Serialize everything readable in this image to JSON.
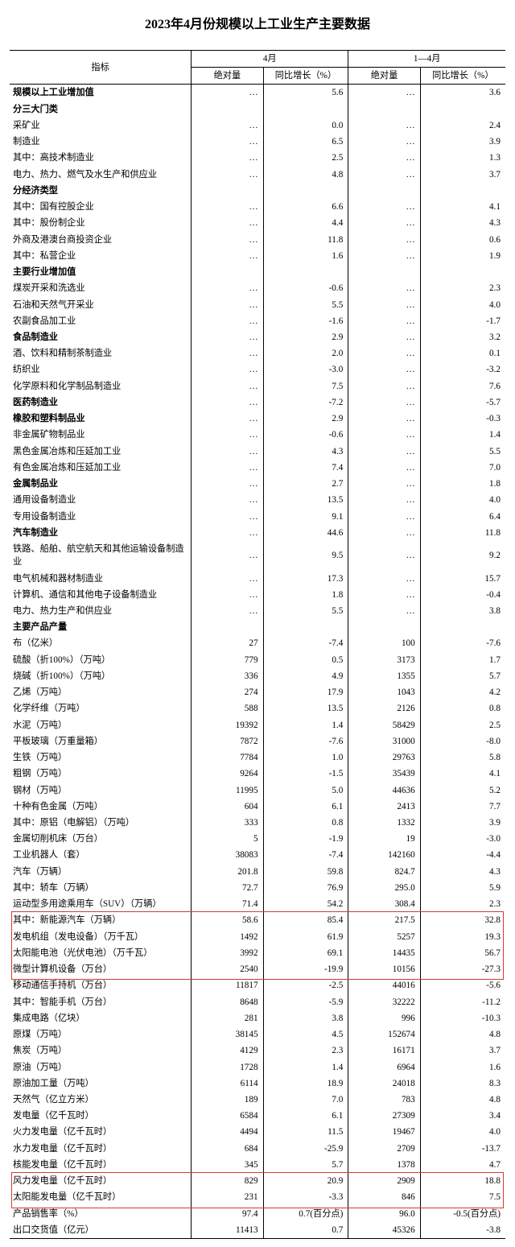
{
  "title": "2023年4月份规模以上工业生产主要数据",
  "header": {
    "indicator": "指标",
    "group_april": "4月",
    "group_jan_apr": "1—4月",
    "abs": "绝对量",
    "yoy": "同比增长（%）"
  },
  "highlight_color": "#d63a2e",
  "rows": [
    {
      "label": "规模以上工业增加值",
      "indent": 0,
      "bold": true,
      "a": "…",
      "b": "5.6",
      "c": "…",
      "d": "3.6"
    },
    {
      "label": "分三大门类",
      "indent": 0,
      "bold": true,
      "a": "",
      "b": "",
      "c": "",
      "d": ""
    },
    {
      "label": "采矿业",
      "indent": 1,
      "a": "…",
      "b": "0.0",
      "c": "…",
      "d": "2.4"
    },
    {
      "label": "制造业",
      "indent": 1,
      "a": "…",
      "b": "6.5",
      "c": "…",
      "d": "3.9"
    },
    {
      "label": "其中：高技术制造业",
      "indent": 2,
      "a": "…",
      "b": "2.5",
      "c": "…",
      "d": "1.3"
    },
    {
      "label": "电力、热力、燃气及水生产和供应业",
      "indent": 1,
      "a": "…",
      "b": "4.8",
      "c": "…",
      "d": "3.7"
    },
    {
      "label": "分经济类型",
      "indent": 0,
      "bold": true,
      "a": "",
      "b": "",
      "c": "",
      "d": ""
    },
    {
      "label": "其中：国有控股企业",
      "indent": 1,
      "a": "…",
      "b": "6.6",
      "c": "…",
      "d": "4.1"
    },
    {
      "label": "其中：股份制企业",
      "indent": 1,
      "a": "…",
      "b": "4.4",
      "c": "…",
      "d": "4.3"
    },
    {
      "label": "外商及港澳台商投资企业",
      "indent": 2,
      "a": "…",
      "b": "11.8",
      "c": "…",
      "d": "0.6"
    },
    {
      "label": "其中：私营企业",
      "indent": 1,
      "a": "…",
      "b": "1.6",
      "c": "…",
      "d": "1.9"
    },
    {
      "label": "主要行业增加值",
      "indent": 0,
      "bold": true,
      "a": "",
      "b": "",
      "c": "",
      "d": ""
    },
    {
      "label": "煤炭开采和洗选业",
      "indent": 1,
      "a": "…",
      "b": "-0.6",
      "c": "…",
      "d": "2.3"
    },
    {
      "label": "石油和天然气开采业",
      "indent": 1,
      "a": "…",
      "b": "5.5",
      "c": "…",
      "d": "4.0"
    },
    {
      "label": "农副食品加工业",
      "indent": 1,
      "a": "…",
      "b": "-1.6",
      "c": "…",
      "d": "-1.7"
    },
    {
      "label": "食品制造业",
      "indent": 1,
      "bold": true,
      "a": "…",
      "b": "2.9",
      "c": "…",
      "d": "3.2"
    },
    {
      "label": "酒、饮料和精制茶制造业",
      "indent": 1,
      "a": "…",
      "b": "2.0",
      "c": "…",
      "d": "0.1"
    },
    {
      "label": "纺织业",
      "indent": 1,
      "a": "…",
      "b": "-3.0",
      "c": "…",
      "d": "-3.2"
    },
    {
      "label": "化学原料和化学制品制造业",
      "indent": 1,
      "a": "…",
      "b": "7.5",
      "c": "…",
      "d": "7.6"
    },
    {
      "label": "医药制造业",
      "indent": 1,
      "bold": true,
      "a": "…",
      "b": "-7.2",
      "c": "…",
      "d": "-5.7"
    },
    {
      "label": "橡胶和塑料制品业",
      "indent": 1,
      "bold": true,
      "a": "…",
      "b": "2.9",
      "c": "…",
      "d": "-0.3"
    },
    {
      "label": "非金属矿物制品业",
      "indent": 1,
      "a": "…",
      "b": "-0.6",
      "c": "…",
      "d": "1.4"
    },
    {
      "label": "黑色金属冶炼和压延加工业",
      "indent": 1,
      "a": "…",
      "b": "4.3",
      "c": "…",
      "d": "5.5"
    },
    {
      "label": "有色金属冶炼和压延加工业",
      "indent": 1,
      "a": "…",
      "b": "7.4",
      "c": "…",
      "d": "7.0"
    },
    {
      "label": "金属制品业",
      "indent": 1,
      "bold": true,
      "a": "…",
      "b": "2.7",
      "c": "…",
      "d": "1.8"
    },
    {
      "label": "通用设备制造业",
      "indent": 1,
      "a": "…",
      "b": "13.5",
      "c": "…",
      "d": "4.0"
    },
    {
      "label": "专用设备制造业",
      "indent": 1,
      "a": "…",
      "b": "9.1",
      "c": "…",
      "d": "6.4"
    },
    {
      "label": "汽车制造业",
      "indent": 1,
      "bold": true,
      "a": "…",
      "b": "44.6",
      "c": "…",
      "d": "11.8"
    },
    {
      "label": "铁路、船舶、航空航天和其他运输设备制造业",
      "indent": 1,
      "a": "…",
      "b": "9.5",
      "c": "…",
      "d": "9.2"
    },
    {
      "label": "电气机械和器材制造业",
      "indent": 1,
      "a": "…",
      "b": "17.3",
      "c": "…",
      "d": "15.7"
    },
    {
      "label": "计算机、通信和其他电子设备制造业",
      "indent": 1,
      "a": "…",
      "b": "1.8",
      "c": "…",
      "d": "-0.4"
    },
    {
      "label": "电力、热力生产和供应业",
      "indent": 1,
      "a": "…",
      "b": "5.5",
      "c": "…",
      "d": "3.8"
    },
    {
      "label": "主要产品产量",
      "indent": 0,
      "bold": true,
      "a": "",
      "b": "",
      "c": "",
      "d": ""
    },
    {
      "label": "布（亿米）",
      "indent": 1,
      "a": "27",
      "b": "-7.4",
      "c": "100",
      "d": "-7.6"
    },
    {
      "label": "硫酸（折100%）（万吨）",
      "indent": 1,
      "a": "779",
      "b": "0.5",
      "c": "3173",
      "d": "1.7"
    },
    {
      "label": "烧碱（折100%）（万吨）",
      "indent": 1,
      "a": "336",
      "b": "4.9",
      "c": "1355",
      "d": "5.7"
    },
    {
      "label": "乙烯（万吨）",
      "indent": 1,
      "a": "274",
      "b": "17.9",
      "c": "1043",
      "d": "4.2"
    },
    {
      "label": "化学纤维（万吨）",
      "indent": 1,
      "a": "588",
      "b": "13.5",
      "c": "2126",
      "d": "0.8"
    },
    {
      "label": "水泥（万吨）",
      "indent": 1,
      "a": "19392",
      "b": "1.4",
      "c": "58429",
      "d": "2.5"
    },
    {
      "label": "平板玻璃（万重量箱）",
      "indent": 1,
      "a": "7872",
      "b": "-7.6",
      "c": "31000",
      "d": "-8.0"
    },
    {
      "label": "生铁（万吨）",
      "indent": 1,
      "a": "7784",
      "b": "1.0",
      "c": "29763",
      "d": "5.8"
    },
    {
      "label": "粗钢（万吨）",
      "indent": 1,
      "a": "9264",
      "b": "-1.5",
      "c": "35439",
      "d": "4.1"
    },
    {
      "label": "钢材（万吨）",
      "indent": 1,
      "a": "11995",
      "b": "5.0",
      "c": "44636",
      "d": "5.2"
    },
    {
      "label": "十种有色金属（万吨）",
      "indent": 1,
      "a": "604",
      "b": "6.1",
      "c": "2413",
      "d": "7.7"
    },
    {
      "label": "其中：原铝（电解铝）（万吨）",
      "indent": 2,
      "a": "333",
      "b": "0.8",
      "c": "1332",
      "d": "3.9"
    },
    {
      "label": "金属切削机床（万台）",
      "indent": 1,
      "a": "5",
      "b": "-1.9",
      "c": "19",
      "d": "-3.0"
    },
    {
      "label": "工业机器人（套）",
      "indent": 1,
      "a": "38083",
      "b": "-7.4",
      "c": "142160",
      "d": "-4.4"
    },
    {
      "label": "汽车（万辆）",
      "indent": 1,
      "a": "201.8",
      "b": "59.8",
      "c": "824.7",
      "d": "4.3"
    },
    {
      "label": "其中：轿车（万辆）",
      "indent": 2,
      "a": "72.7",
      "b": "76.9",
      "c": "295.0",
      "d": "5.9"
    },
    {
      "label": "运动型多用途乘用车（SUV）（万辆）",
      "indent": 3,
      "a": "71.4",
      "b": "54.2",
      "c": "308.4",
      "d": "2.3"
    },
    {
      "label": "其中：新能源汽车（万辆）",
      "indent": 2,
      "a": "58.6",
      "b": "85.4",
      "c": "217.5",
      "d": "32.8"
    },
    {
      "label": "发电机组（发电设备）（万千瓦）",
      "indent": 1,
      "a": "1492",
      "b": "61.9",
      "c": "5257",
      "d": "19.3"
    },
    {
      "label": "太阳能电池（光伏电池）（万千瓦）",
      "indent": 1,
      "a": "3992",
      "b": "69.1",
      "c": "14435",
      "d": "56.7"
    },
    {
      "label": "微型计算机设备（万台）",
      "indent": 1,
      "a": "2540",
      "b": "-19.9",
      "c": "10156",
      "d": "-27.3"
    },
    {
      "label": "移动通信手持机（万台）",
      "indent": 1,
      "a": "11817",
      "b": "-2.5",
      "c": "44016",
      "d": "-5.6"
    },
    {
      "label": "其中：智能手机（万台）",
      "indent": 2,
      "a": "8648",
      "b": "-5.9",
      "c": "32222",
      "d": "-11.2"
    },
    {
      "label": "集成电路（亿块）",
      "indent": 1,
      "a": "281",
      "b": "3.8",
      "c": "996",
      "d": "-10.3"
    },
    {
      "label": "原煤（万吨）",
      "indent": 1,
      "a": "38145",
      "b": "4.5",
      "c": "152674",
      "d": "4.8"
    },
    {
      "label": "焦炭（万吨）",
      "indent": 1,
      "a": "4129",
      "b": "2.3",
      "c": "16171",
      "d": "3.7"
    },
    {
      "label": "原油（万吨）",
      "indent": 1,
      "a": "1728",
      "b": "1.4",
      "c": "6964",
      "d": "1.6"
    },
    {
      "label": "原油加工量（万吨）",
      "indent": 1,
      "a": "6114",
      "b": "18.9",
      "c": "24018",
      "d": "8.3"
    },
    {
      "label": "天然气（亿立方米）",
      "indent": 1,
      "a": "189",
      "b": "7.0",
      "c": "783",
      "d": "4.8"
    },
    {
      "label": "发电量（亿千瓦时）",
      "indent": 1,
      "a": "6584",
      "b": "6.1",
      "c": "27309",
      "d": "3.4"
    },
    {
      "label": "火力发电量（亿千瓦时）",
      "indent": 2,
      "a": "4494",
      "b": "11.5",
      "c": "19467",
      "d": "4.0"
    },
    {
      "label": "水力发电量（亿千瓦时）",
      "indent": 2,
      "a": "684",
      "b": "-25.9",
      "c": "2709",
      "d": "-13.7"
    },
    {
      "label": "核能发电量（亿千瓦时）",
      "indent": 2,
      "a": "345",
      "b": "5.7",
      "c": "1378",
      "d": "4.7"
    },
    {
      "label": "风力发电量（亿千瓦时）",
      "indent": 2,
      "a": "829",
      "b": "20.9",
      "c": "2909",
      "d": "18.8"
    },
    {
      "label": "太阳能发电量（亿千瓦时）",
      "indent": 2,
      "a": "231",
      "b": "-3.3",
      "c": "846",
      "d": "7.5"
    },
    {
      "label": "产品销售率（%）",
      "indent": 1,
      "a": "97.4",
      "b": "0.7(百分点)",
      "c": "96.0",
      "d": "-0.5(百分点)"
    },
    {
      "label": "出口交货值（亿元）",
      "indent": 1,
      "a": "11413",
      "b": "0.7",
      "c": "45326",
      "d": "-3.8"
    }
  ]
}
